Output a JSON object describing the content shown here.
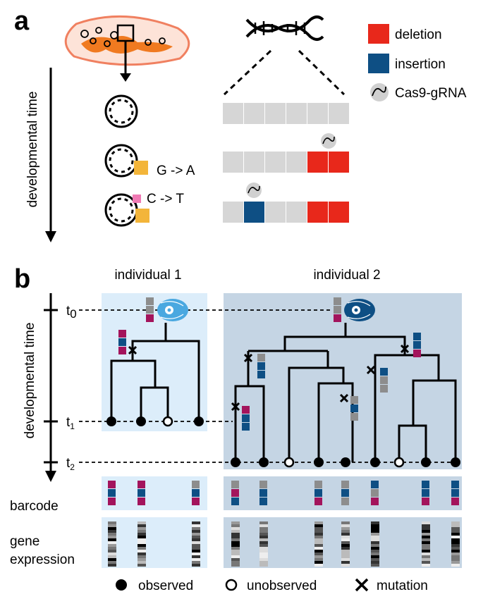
{
  "panel_a": {
    "letter": "a",
    "time_axis_label": "developmental time",
    "mutation_1": "G -> A",
    "mutation_2": "C -> T",
    "legend": {
      "deletion": "deletion",
      "insertion": "insertion",
      "cas9": "Cas9-gRNA"
    }
  },
  "panel_b": {
    "letter": "b",
    "individual_1": "individual 1",
    "individual_2": "individual 2",
    "time_axis_label": "developmental time",
    "t0": "t",
    "t0_sub": "0",
    "t1": "t",
    "t1_sub": "1",
    "t2": "t",
    "t2_sub": "2",
    "row_barcode": "barcode",
    "row_gene_1": "gene",
    "row_gene_2": "expression",
    "legend": {
      "observed": "observed",
      "unobserved": "unobserved",
      "mutation": "mutation"
    }
  },
  "colors": {
    "deletion": "#e8281b",
    "insertion": "#0e4f84",
    "magenta": "#a3145c",
    "grey": "#8d8d8d",
    "ind1_bg": "#dcedfa",
    "ind2_bg": "#c5d5e4",
    "cell_orange": "#f07a20",
    "mutation_yellow": "#f3b53a",
    "mutation_pink": "#f07ab4"
  }
}
